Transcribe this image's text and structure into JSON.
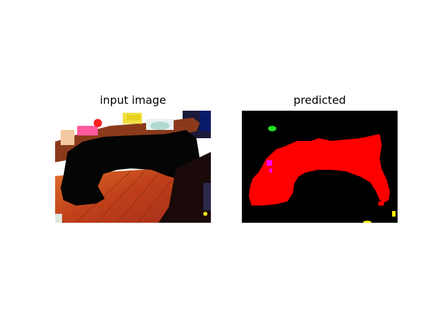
{
  "figure": {
    "panels": [
      {
        "title": "input image",
        "kind": "photo"
      },
      {
        "title": "predicted",
        "kind": "segmentation-mask"
      }
    ]
  },
  "colors": {
    "background": "#ffffff",
    "mask_background": "#000000",
    "mask_main": "#ff0000",
    "mask_green": "#22dd22",
    "mask_magenta": "#ff00ff",
    "mask_yellow": "#ffee00",
    "wood": "#c0401a",
    "table_top": "#8a3a1a"
  }
}
